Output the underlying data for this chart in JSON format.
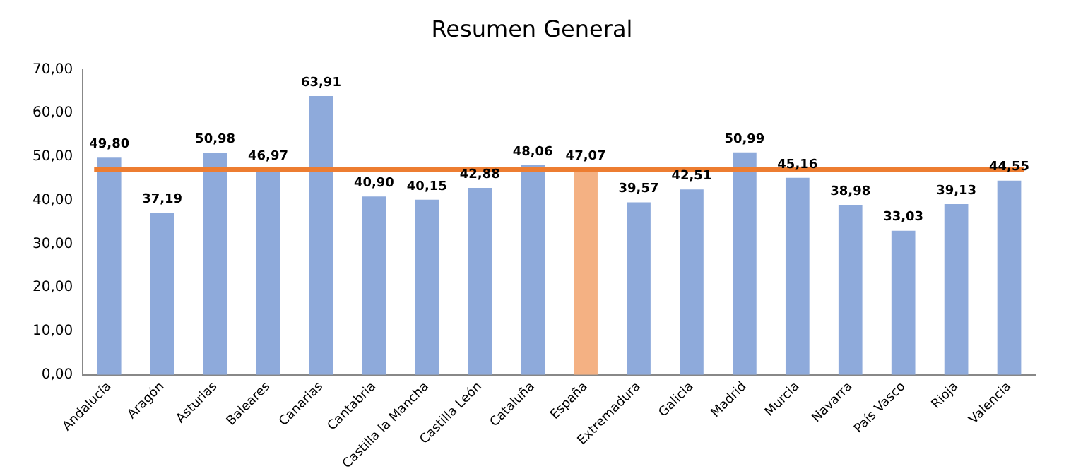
{
  "chart_data": {
    "type": "bar",
    "title": "Resumen General",
    "categories": [
      "Andalucía",
      "Aragón",
      "Asturias",
      "Baleares",
      "Canarias",
      "Cantabria",
      "Castilla la Mancha",
      "Castilla León",
      "Cataluña",
      "España",
      "Extremadura",
      "Galicia",
      "Madrid",
      "Murcia",
      "Navarra",
      "País Vasco",
      "Rioja",
      "Valencia"
    ],
    "values": [
      49.8,
      37.19,
      50.98,
      46.97,
      63.91,
      40.9,
      40.15,
      42.88,
      48.06,
      47.07,
      39.57,
      42.51,
      50.99,
      45.16,
      38.98,
      33.03,
      39.13,
      44.55
    ],
    "colors": [
      "#8eaadb",
      "#8eaadb",
      "#8eaadb",
      "#8eaadb",
      "#8eaadb",
      "#8eaadb",
      "#8eaadb",
      "#8eaadb",
      "#8eaadb",
      "#f4b183",
      "#8eaadb",
      "#8eaadb",
      "#8eaadb",
      "#8eaadb",
      "#8eaadb",
      "#8eaadb",
      "#8eaadb",
      "#8eaadb"
    ],
    "value_labels": [
      "49,80",
      "37,19",
      "50,98",
      "46,97",
      "63,91",
      "40,90",
      "40,15",
      "42,88",
      "48,06",
      "47,07",
      "39,57",
      "42,51",
      "50,99",
      "45,16",
      "38,98",
      "33,03",
      "39,13",
      "44,55"
    ],
    "ylim": [
      0,
      70
    ],
    "yticks": [
      {
        "value": 0,
        "label": "0,00"
      },
      {
        "value": 10,
        "label": "10,00"
      },
      {
        "value": 20,
        "label": "20,00"
      },
      {
        "value": 30,
        "label": "30,00"
      },
      {
        "value": 40,
        "label": "40,00"
      },
      {
        "value": 50,
        "label": "50,00"
      },
      {
        "value": 60,
        "label": "60,00"
      },
      {
        "value": 70,
        "label": "70,00"
      }
    ],
    "ref_lines": [
      {
        "axis": "y",
        "value": 47.07,
        "color": "#ed7d31"
      }
    ],
    "grid": false,
    "legend": false
  }
}
